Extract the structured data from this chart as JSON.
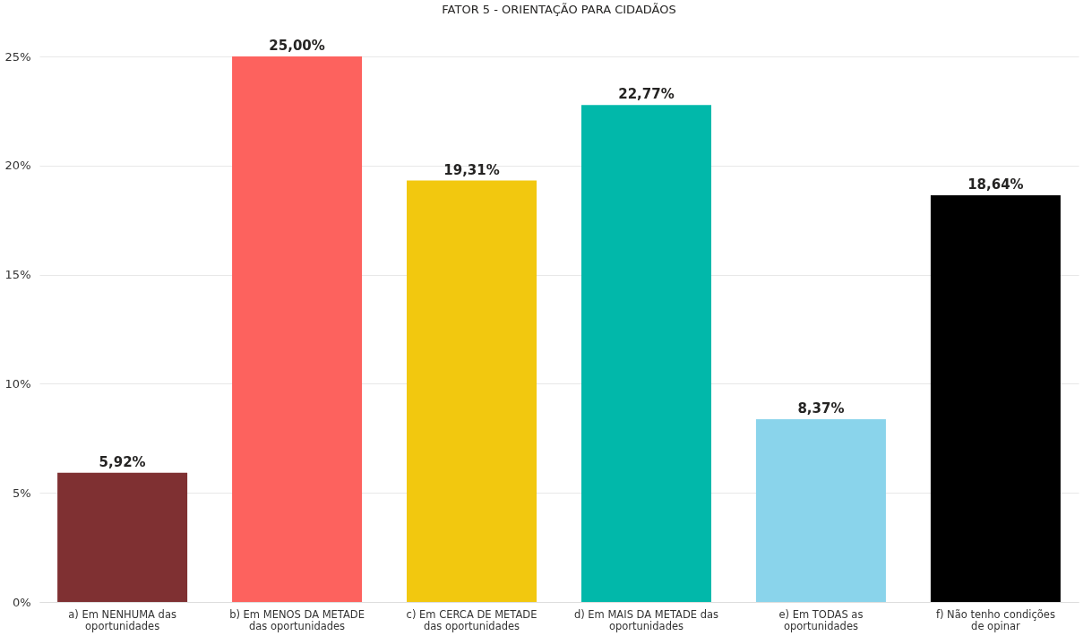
{
  "chart_data": {
    "type": "bar",
    "title": "FATOR 5 - ORIENTAÇÃO PARA CIDADÃOS",
    "categories": [
      "a) Em NENHUMA das oportunidades",
      "b) Em MENOS DA METADE das oportunidades",
      "c) Em CERCA DE METADE das oportunidades",
      "d) Em MAIS DA METADE das oportunidades",
      "e) Em TODAS as oportunidades",
      "f) Não tenho condições de opinar"
    ],
    "values": [
      5.92,
      25.0,
      19.31,
      22.77,
      8.37,
      18.64
    ],
    "value_labels": [
      "5,92%",
      "25,00%",
      "19,31%",
      "22,77%",
      "8,37%",
      "18,64%"
    ],
    "colors": [
      "#7f3032",
      "#fd625e",
      "#f2c80f",
      "#01b8aa",
      "#8ad4eb",
      "#000000"
    ],
    "ylim": [
      0,
      25
    ],
    "yticks": [
      {
        "value": 0,
        "label": "0%"
      },
      {
        "value": 5,
        "label": "5%"
      },
      {
        "value": 10,
        "label": "10%"
      },
      {
        "value": 15,
        "label": "15%"
      },
      {
        "value": 20,
        "label": "20%"
      },
      {
        "value": 25,
        "label": "25%"
      }
    ],
    "grid": "y"
  }
}
